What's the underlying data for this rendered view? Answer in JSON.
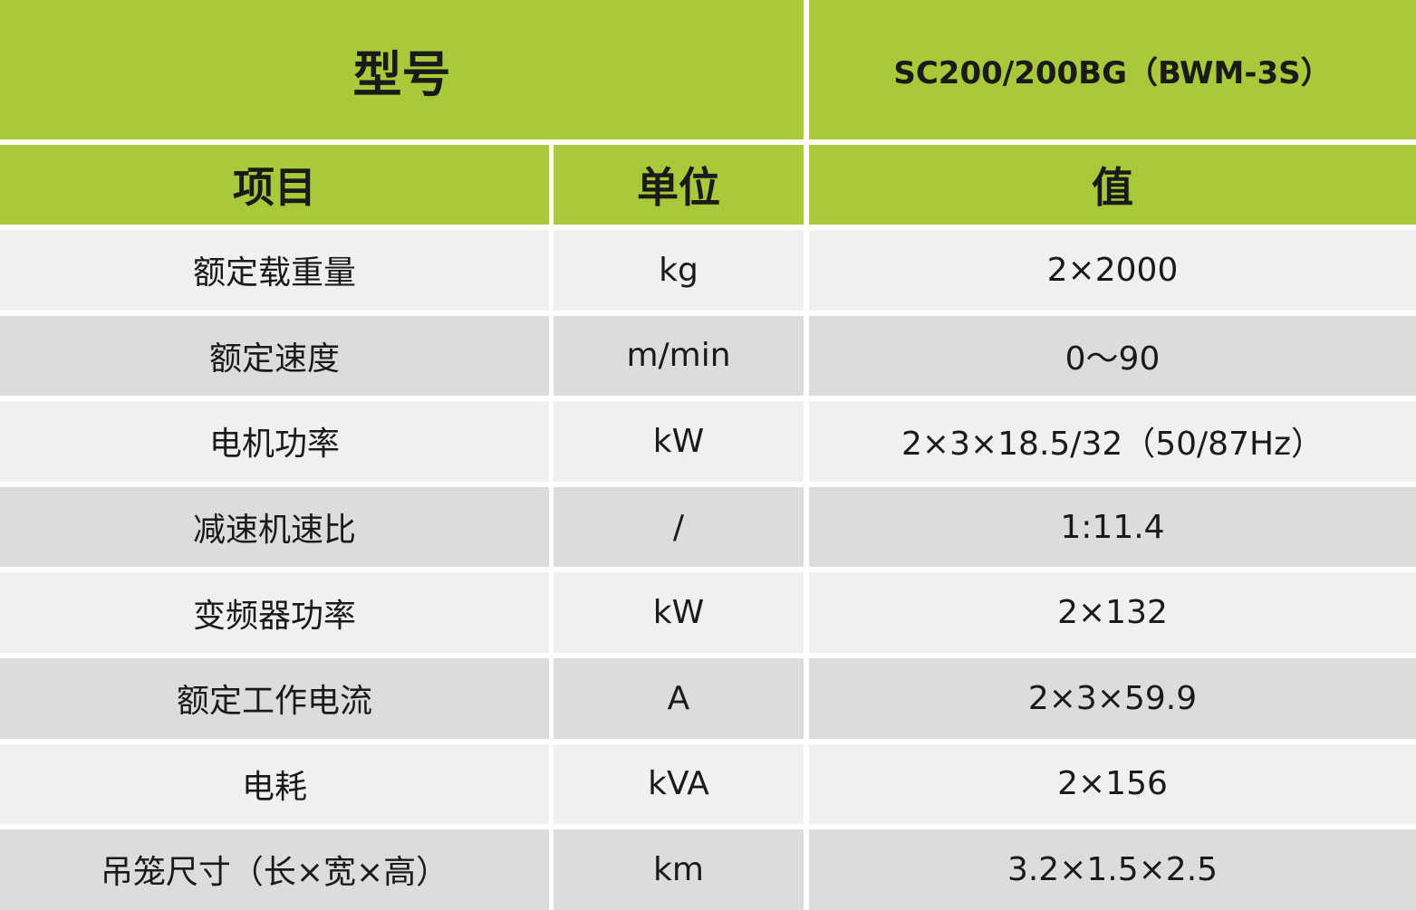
{
  "header": {
    "title": "型号",
    "model": "SC200/200BG（BWM-3S）"
  },
  "table": {
    "columns": [
      "项目",
      "单位",
      "值"
    ],
    "rows": [
      [
        "额定载重量",
        "kg",
        "2×2000"
      ],
      [
        "额定速度",
        "m/min",
        "0～90"
      ],
      [
        "电机功率",
        "kW",
        "2×3×18.5/32（50/87Hz）"
      ],
      [
        "减速机速比",
        "/",
        "1:11.4"
      ],
      [
        "变频器功率",
        "kW",
        "2×132"
      ],
      [
        "额定工作电流",
        "A",
        "2×3×59.9"
      ],
      [
        "电耗",
        "kVA",
        "2×156"
      ],
      [
        "吊笼尺寸（长×宽×高）",
        "km",
        "3.2×1.5×2.5"
      ]
    ]
  }
}
